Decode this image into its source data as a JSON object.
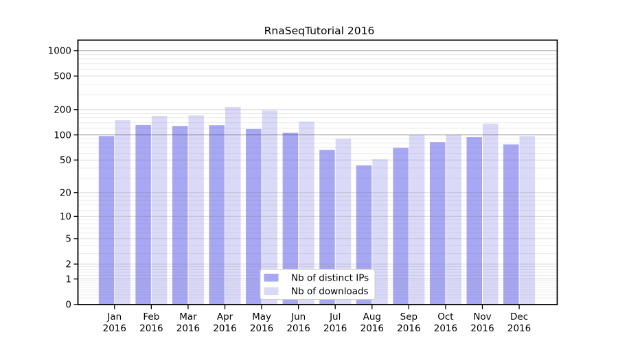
{
  "page": {
    "background": "#ffffff"
  },
  "chart_data": {
    "type": "bar",
    "title": "RnaSeqTutorial 2016",
    "x_categories": [
      {
        "month": "Jan",
        "year": "2016"
      },
      {
        "month": "Feb",
        "year": "2016"
      },
      {
        "month": "Mar",
        "year": "2016"
      },
      {
        "month": "Apr",
        "year": "2016"
      },
      {
        "month": "May",
        "year": "2016"
      },
      {
        "month": "Jun",
        "year": "2016"
      },
      {
        "month": "Jul",
        "year": "2016"
      },
      {
        "month": "Aug",
        "year": "2016"
      },
      {
        "month": "Sep",
        "year": "2016"
      },
      {
        "month": "Oct",
        "year": "2016"
      },
      {
        "month": "Nov",
        "year": "2016"
      },
      {
        "month": "Dec",
        "year": "2016"
      }
    ],
    "series": [
      {
        "key": "distinct-ips",
        "name": "Nb of distinct IPs",
        "color": "#a7a7f3",
        "values": [
          97,
          132,
          127,
          131,
          118,
          106,
          66,
          43,
          70,
          82,
          94,
          77
        ]
      },
      {
        "key": "downloads",
        "name": "Nb of downloads",
        "color": "#dadaf8",
        "values": [
          150,
          168,
          171,
          215,
          196,
          144,
          90,
          51,
          100,
          100,
          136,
          97
        ]
      }
    ],
    "y_axis": {
      "scale": "symlog-log1p",
      "tick_values": [
        0,
        1,
        2,
        5,
        10,
        20,
        50,
        100,
        200,
        500,
        1000
      ],
      "tick_labels": [
        "0",
        "1",
        "2",
        "5",
        "10",
        "20",
        "50",
        "100",
        "200",
        "500",
        "1000"
      ],
      "range": [
        0,
        1000
      ]
    },
    "legend": {
      "position": "bottom-center",
      "entries": [
        "Nb of distinct IPs",
        "Nb of downloads"
      ]
    },
    "grid": {
      "shown": true,
      "strong_lines_at": [
        100,
        1000
      ]
    }
  }
}
